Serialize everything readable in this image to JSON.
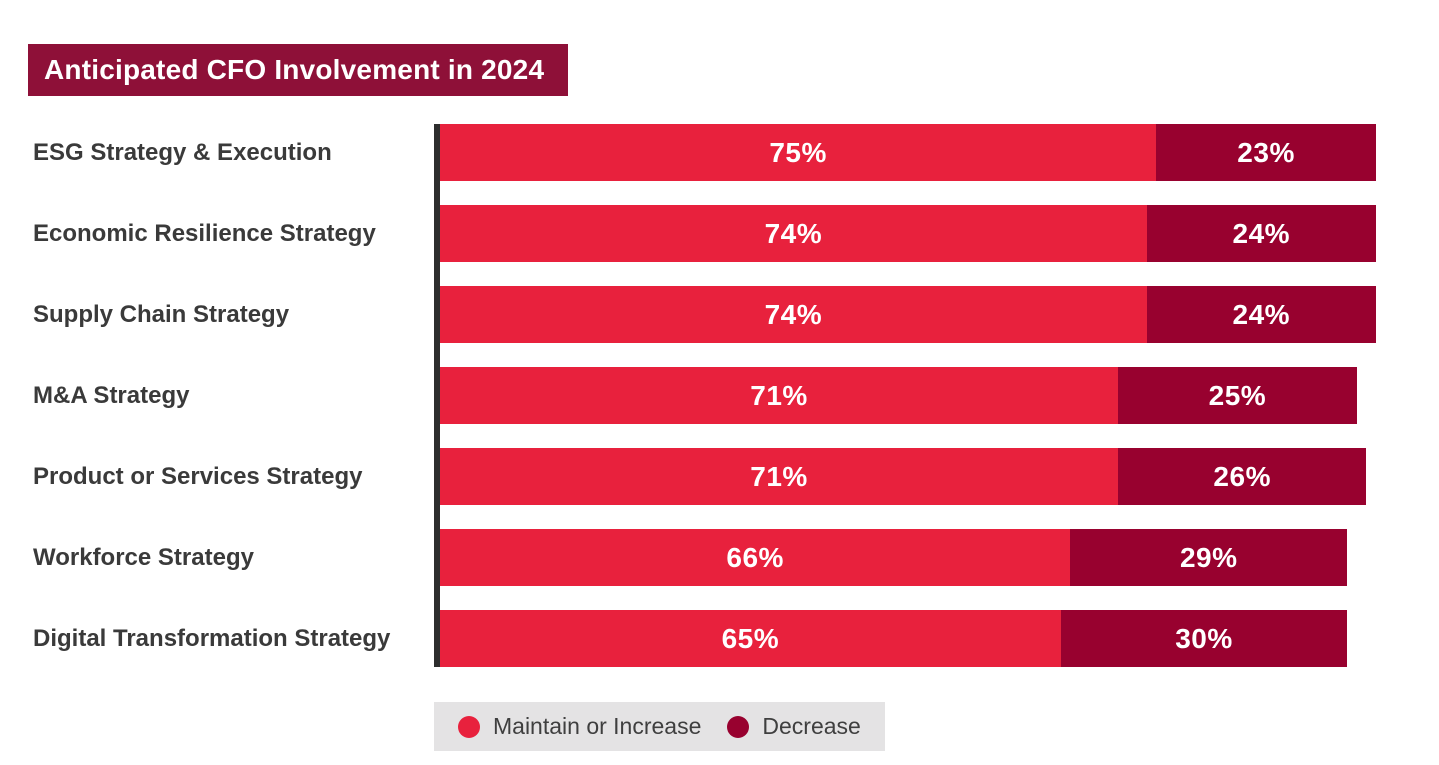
{
  "title": "Anticipated CFO Involvement in 2024",
  "colors": {
    "maintain_red": "#E8213D",
    "decrease_maroon": "#98012F",
    "title_background": "#8E1038",
    "axis_line": "#2D2D2D",
    "legend_background": "#E4E3E4",
    "category_text": "#3A3A3A",
    "value_text": "#FFFFFF"
  },
  "chart_data": {
    "type": "bar",
    "orientation": "horizontal",
    "stacked": true,
    "title": "Anticipated CFO Involvement in 2024",
    "xlabel": "",
    "ylabel": "",
    "xlim": [
      0,
      100
    ],
    "grid": false,
    "legend_position": "bottom",
    "categories": [
      "ESG Strategy & Execution",
      "Economic Resilience Strategy",
      "Supply Chain Strategy",
      "M&A Strategy",
      "Product or Services Strategy",
      "Workforce Strategy",
      "Digital Transformation Strategy"
    ],
    "series": [
      {
        "name": "Maintain or Increase",
        "color": "#E8213D",
        "values": [
          75,
          74,
          74,
          71,
          71,
          66,
          65
        ],
        "labels": [
          "75%",
          "74%",
          "74%",
          "71%",
          "71%",
          "66%",
          "65%"
        ]
      },
      {
        "name": "Decrease",
        "color": "#98012F",
        "values": [
          23,
          24,
          24,
          25,
          26,
          29,
          30
        ],
        "labels": [
          "23%",
          "24%",
          "24%",
          "25%",
          "26%",
          "29%",
          "30%"
        ]
      }
    ]
  },
  "legend": {
    "items": [
      {
        "label": "Maintain or Increase",
        "color": "#E8213D"
      },
      {
        "label": "Decrease",
        "color": "#98012F"
      }
    ]
  }
}
